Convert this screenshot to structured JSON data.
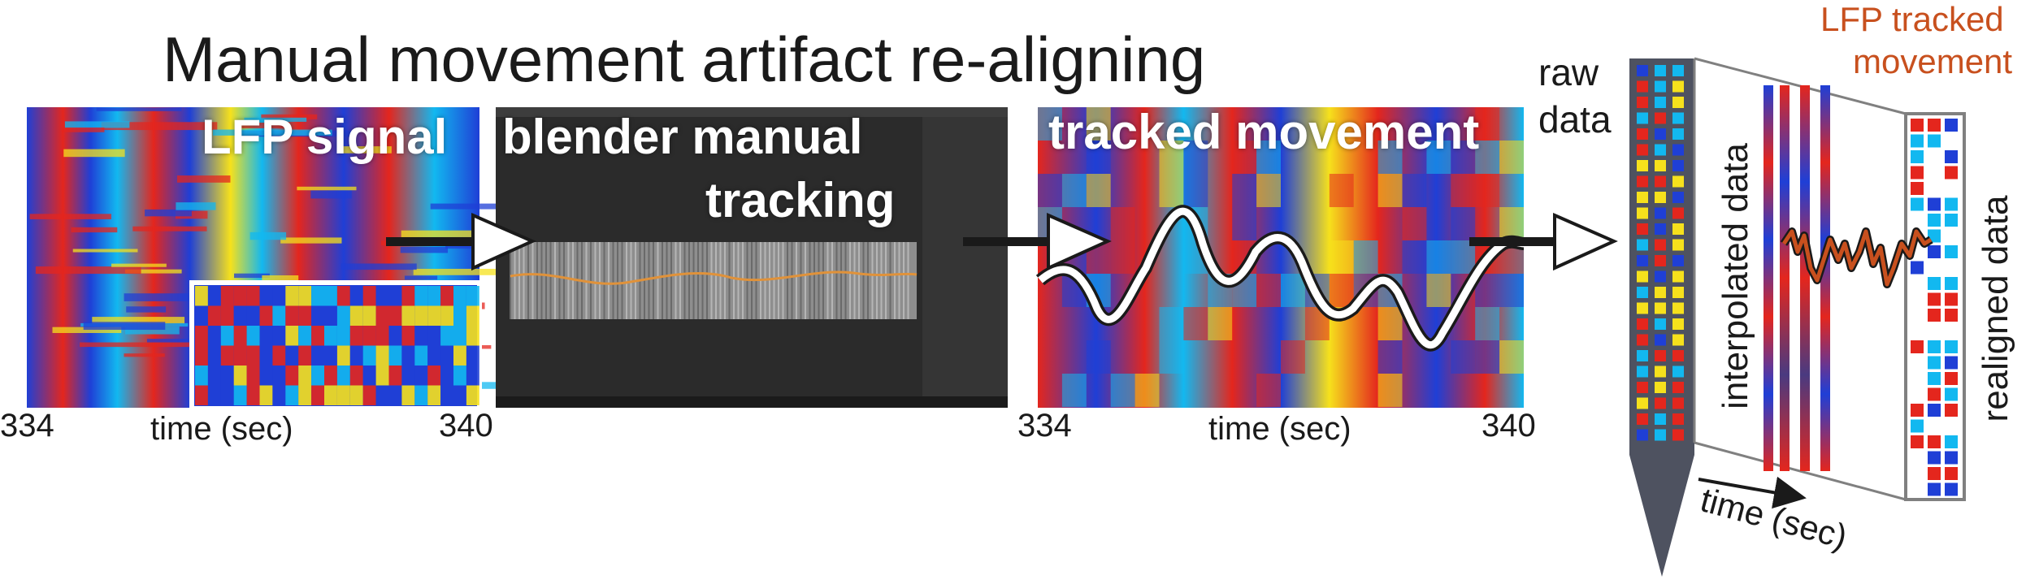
{
  "title": "Manual movement artifact re-aligning",
  "panels": {
    "lfp": {
      "label": "LFP signal"
    },
    "blender": {
      "label_line1": "blender manual",
      "label_line2": "tracking"
    },
    "tracked": {
      "label": "tracked movement"
    }
  },
  "axes": {
    "lfp_start": "334",
    "lfp_end": "340",
    "lfp_label": "time (sec)",
    "tracked_start": "334",
    "tracked_end": "340",
    "tracked_label": "time (sec)"
  },
  "probe": {
    "raw_line1": "raw",
    "raw_line2": "data",
    "interpolated": "interpolated data",
    "realigned": "realigned data",
    "lfp_tracked_line1": "LFP tracked",
    "lfp_tracked_line2": "movement",
    "time_label": "time (sec)"
  },
  "colors": {
    "heat_red": "#e4261d",
    "heat_blue": "#1f3fd6",
    "heat_cyan": "#12b8f0",
    "heat_yellow": "#f6e11c",
    "movement_trace": "#c8501e",
    "probe": "#4e5260"
  }
}
